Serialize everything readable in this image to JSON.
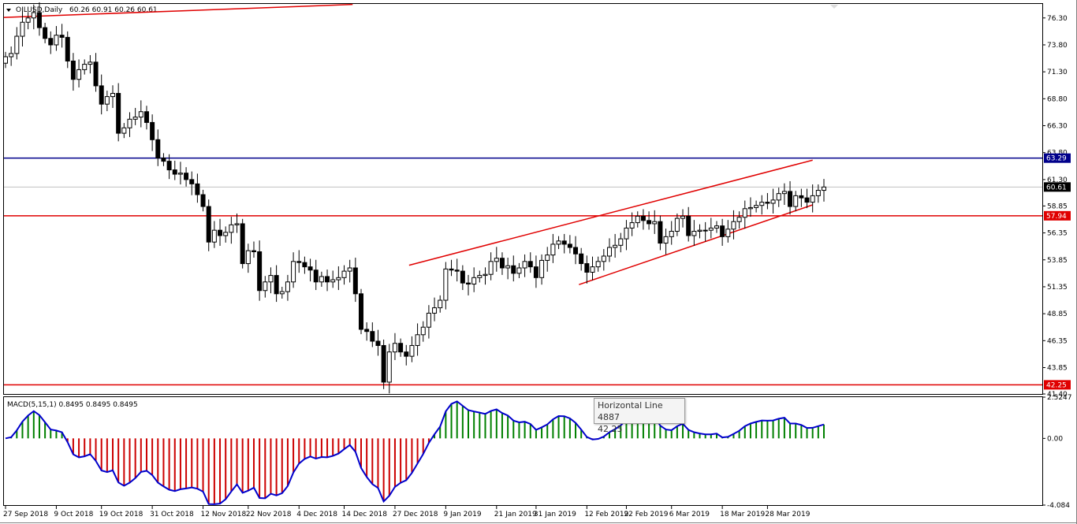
{
  "header": {
    "symbol": "OILUSD,Daily",
    "ohlc": "60.26 60.91 60.26 60.61"
  },
  "macd_header": "MACD(5,15,1) 0.8495 0.8495 0.8495",
  "tooltip": {
    "title": "Horizontal Line 4887",
    "value": "42.25"
  },
  "colors": {
    "bull_body": "#ffffff",
    "bear_body": "#000000",
    "trendline": "#e00000",
    "blue_line": "#00008b",
    "macd_line": "#0000cc",
    "hist_pos": "#008000",
    "hist_neg": "#cc0000"
  },
  "chart_data": [
    {
      "type": "candlestick",
      "symbol": "OILUSD",
      "timeframe": "Daily",
      "ylim": [
        41.4,
        77.6
      ],
      "y_ticks": [
        "76.30",
        "73.80",
        "71.30",
        "68.80",
        "66.30",
        "63.80",
        "61.30",
        "58.85",
        "56.35",
        "53.85",
        "51.35",
        "48.85",
        "46.35",
        "43.85",
        "41.40"
      ],
      "x_ticks": [
        "27 Sep 2018",
        "9 Oct 2018",
        "19 Oct 2018",
        "31 Oct 2018",
        "12 Nov 2018",
        "22 Nov 2018",
        "4 Dec 2018",
        "14 Dec 2018",
        "27 Dec 2018",
        "9 Jan 2019",
        "21 Jan 2019",
        "31 Jan 2019",
        "12 Feb 2019",
        "22 Feb 2019",
        "6 Mar 2019",
        "18 Mar 2019",
        "28 Mar 2019"
      ],
      "closes": [
        72.7,
        73.0,
        74.6,
        75.9,
        76.3,
        76.8,
        75.4,
        74.4,
        73.8,
        74.7,
        74.5,
        72.3,
        70.6,
        71.5,
        72.0,
        72.2,
        70.0,
        68.3,
        69.0,
        69.3,
        65.6,
        66.1,
        66.9,
        67.1,
        67.6,
        66.6,
        65.0,
        63.3,
        63.0,
        62.2,
        61.8,
        61.9,
        61.3,
        60.9,
        59.9,
        58.8,
        55.5,
        56.6,
        56.1,
        56.4,
        57.1,
        57.2,
        53.5,
        54.7,
        54.6,
        51.0,
        51.8,
        52.4,
        50.7,
        50.9,
        51.8,
        53.7,
        53.6,
        53.2,
        52.9,
        51.8,
        52.3,
        51.8,
        52.0,
        52.2,
        52.8,
        53.1,
        50.7,
        47.4,
        47.2,
        46.3,
        45.9,
        42.5,
        45.3,
        46.1,
        45.3,
        44.9,
        45.9,
        46.9,
        47.6,
        48.9,
        49.4,
        50.1,
        53.0,
        52.9,
        52.8,
        51.7,
        51.6,
        52.2,
        52.4,
        52.5,
        53.7,
        54.0,
        53.1,
        53.3,
        52.6,
        53.1,
        53.7,
        53.2,
        52.2,
        53.8,
        54.3,
        55.3,
        55.6,
        55.3,
        55.0,
        54.4,
        53.5,
        52.7,
        53.2,
        53.7,
        54.2,
        55.0,
        55.2,
        55.8,
        56.8,
        57.3,
        57.9,
        57.5,
        57.2,
        57.4,
        55.4,
        56.0,
        56.5,
        57.7,
        57.9,
        56.1,
        56.5,
        56.6,
        56.6,
        56.8,
        57.0,
        56.0,
        56.7,
        57.4,
        57.8,
        58.6,
        58.7,
        58.9,
        59.2,
        59.1,
        59.4,
        60.0,
        60.2,
        58.8,
        59.8,
        59.6,
        59.2,
        59.8,
        60.3,
        60.61
      ],
      "macd_hist": {
        "ylim": [
          -4.084,
          2.5247
        ],
        "y_ticks": [
          "2.5247",
          "0.00",
          "-4.084"
        ],
        "last": 0.8495
      },
      "horizontal_lines": [
        {
          "price": 63.29,
          "label": "63.29",
          "color": "blue"
        },
        {
          "price": 57.94,
          "label": "57.94",
          "color": "red"
        },
        {
          "price": 42.25,
          "label": "42.25",
          "color": "red"
        },
        {
          "price": 60.61,
          "label": "60.61",
          "color": "gray"
        }
      ]
    }
  ]
}
